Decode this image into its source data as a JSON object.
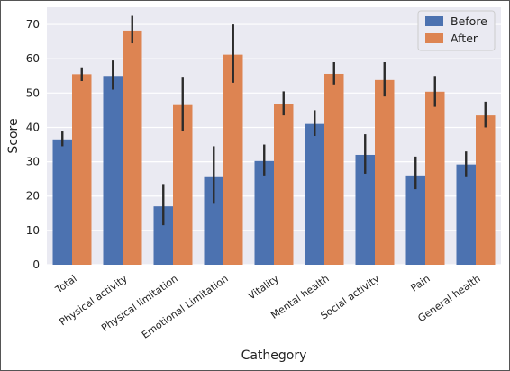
{
  "chart_data": {
    "type": "bar",
    "xlabel": "Cathegory",
    "ylabel": "Score",
    "ylim": [
      0,
      75
    ],
    "yticks": [
      0,
      10,
      20,
      30,
      40,
      50,
      60,
      70
    ],
    "grid": true,
    "legend_position": "top-right",
    "categories": [
      "Total",
      "Physical activity",
      "Physical limitation",
      "Emotional Limitation",
      "Vitality",
      "Mental health",
      "Social activity",
      "Pain",
      "General health"
    ],
    "series": [
      {
        "name": "Before",
        "color": "#4c72b0",
        "values": [
          36.5,
          55.0,
          17.0,
          25.5,
          30.2,
          41.0,
          32.0,
          26.0,
          29.2
        ],
        "error_low": [
          34.5,
          51.0,
          11.5,
          18.0,
          26.0,
          37.5,
          26.5,
          22.0,
          25.5
        ],
        "error_high": [
          38.8,
          59.5,
          23.5,
          34.5,
          35.0,
          45.0,
          38.0,
          31.5,
          33.0
        ]
      },
      {
        "name": "After",
        "color": "#dd8452",
        "values": [
          55.5,
          68.2,
          46.5,
          61.2,
          46.8,
          55.6,
          53.8,
          50.4,
          43.5
        ],
        "error_low": [
          53.5,
          64.5,
          39.0,
          53.0,
          43.5,
          52.5,
          49.0,
          46.0,
          40.0
        ],
        "error_high": [
          57.5,
          72.5,
          54.5,
          70.0,
          50.5,
          59.0,
          59.0,
          55.0,
          47.5
        ]
      }
    ]
  }
}
